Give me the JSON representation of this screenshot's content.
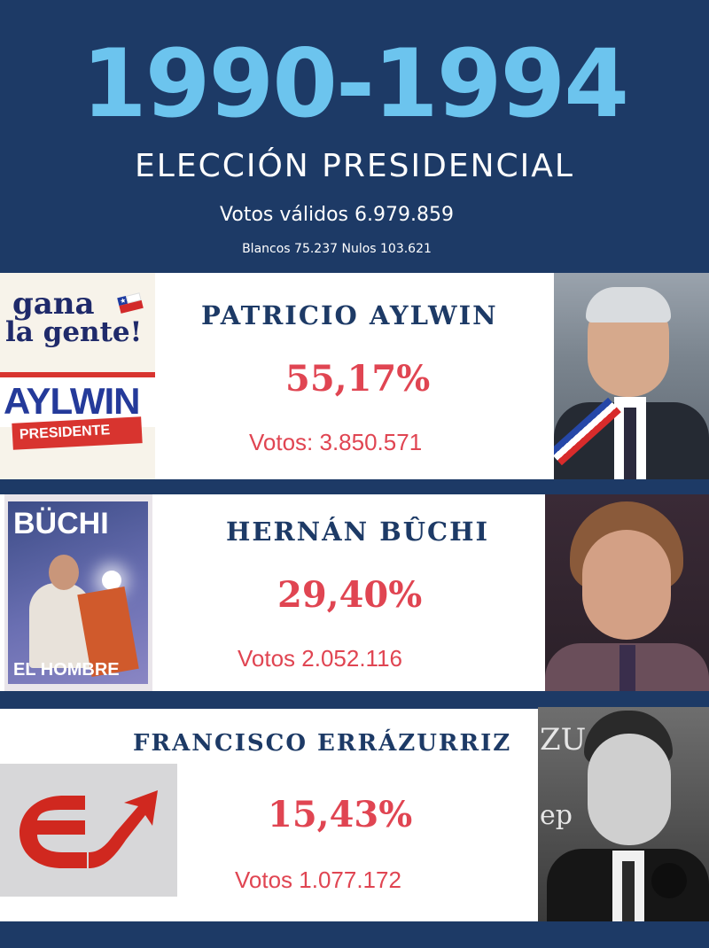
{
  "header": {
    "years": "1990-1994",
    "title": "ELECCIÓN PRESIDENCIAL",
    "valid_votes": "Votos válidos 6.979.859",
    "blank_null": "Blancos 75.237  Nulos 103.621"
  },
  "candidates": [
    {
      "name": "PATRICIO AYLWIN",
      "percent": "55,17%",
      "votes": "Votos: 3.850.571",
      "poster": {
        "line1": "gana",
        "line2": "la gente!",
        "line3": "AYLWIN",
        "line4": "PRESIDENTE"
      }
    },
    {
      "name": "HERNÁN BÛCHI",
      "percent": "29,40%",
      "votes": "Votos 2.052.116",
      "poster": {
        "line1": "BÜCHI",
        "line2": "EL HOMBRE"
      }
    },
    {
      "name": "FRANCISCO ERRÁZURRIZ",
      "percent": "15,43%",
      "votes": "Votos 1.077.172",
      "poster": {
        "logo": "E↗"
      }
    }
  ],
  "colors": {
    "background": "#1d3a66",
    "years": "#6cc4ee",
    "name": "#1d3a66",
    "accent_red": "#e04552"
  }
}
